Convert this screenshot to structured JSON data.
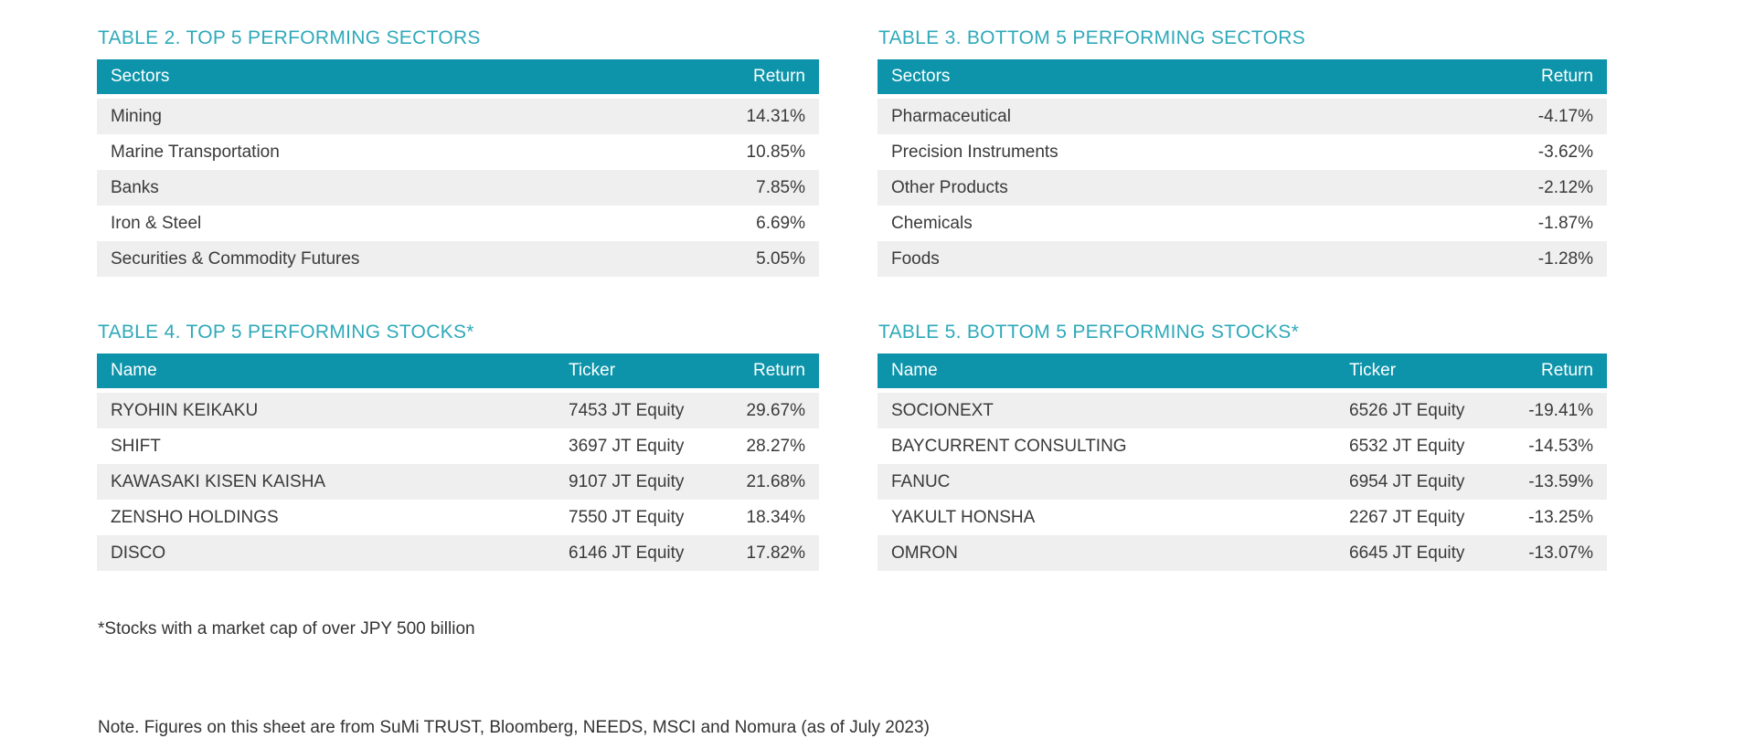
{
  "colors": {
    "table_header_bg": "#0d94aa",
    "table_title_text": "#2fa9b9",
    "row_stripe": "#efefef",
    "body_text": "#3a3a3a"
  },
  "tables": {
    "table2": {
      "title": "TABLE 2. TOP 5 PERFORMING SECTORS",
      "headers": {
        "col1": "Sectors",
        "col2": "Return"
      },
      "rows": [
        {
          "sector": "Mining",
          "return": "14.31%"
        },
        {
          "sector": "Marine Transportation",
          "return": "10.85%"
        },
        {
          "sector": "Banks",
          "return": "7.85%"
        },
        {
          "sector": "Iron & Steel",
          "return": "6.69%"
        },
        {
          "sector": "Securities & Commodity Futures",
          "return": "5.05%"
        }
      ]
    },
    "table3": {
      "title": "TABLE 3. BOTTOM 5 PERFORMING SECTORS",
      "headers": {
        "col1": "Sectors",
        "col2": "Return"
      },
      "rows": [
        {
          "sector": "Pharmaceutical",
          "return": "-4.17%"
        },
        {
          "sector": "Precision Instruments",
          "return": "-3.62%"
        },
        {
          "sector": "Other Products",
          "return": "-2.12%"
        },
        {
          "sector": "Chemicals",
          "return": "-1.87%"
        },
        {
          "sector": "Foods",
          "return": "-1.28%"
        }
      ]
    },
    "table4": {
      "title": "TABLE 4. TOP 5 PERFORMING STOCKS*",
      "headers": {
        "col1": "Name",
        "col2": "Ticker",
        "col3": "Return"
      },
      "rows": [
        {
          "name": "RYOHIN KEIKAKU",
          "ticker": "7453 JT Equity",
          "return": "29.67%"
        },
        {
          "name": "SHIFT",
          "ticker": "3697 JT Equity",
          "return": "28.27%"
        },
        {
          "name": "KAWASAKI KISEN KAISHA",
          "ticker": "9107 JT Equity",
          "return": "21.68%"
        },
        {
          "name": "ZENSHO HOLDINGS",
          "ticker": "7550 JT Equity",
          "return": "18.34%"
        },
        {
          "name": "DISCO",
          "ticker": "6146 JT Equity",
          "return": "17.82%"
        }
      ]
    },
    "table5": {
      "title": "TABLE 5. BOTTOM 5 PERFORMING STOCKS*",
      "headers": {
        "col1": "Name",
        "col2": "Ticker",
        "col3": "Return"
      },
      "rows": [
        {
          "name": "SOCIONEXT",
          "ticker": "6526 JT Equity",
          "return": "-19.41%"
        },
        {
          "name": "BAYCURRENT CONSULTING",
          "ticker": "6532 JT Equity",
          "return": "-14.53%"
        },
        {
          "name": "FANUC",
          "ticker": "6954 JT Equity",
          "return": "-13.59%"
        },
        {
          "name": "YAKULT HONSHA",
          "ticker": "2267 JT Equity",
          "return": "-13.25%"
        },
        {
          "name": "OMRON",
          "ticker": "6645 JT Equity",
          "return": "-13.07%"
        }
      ]
    }
  },
  "notes": {
    "market_cap_footnote": "*Stocks with a market cap of over JPY 500 billion",
    "source_note": "Note. Figures on this sheet are from SuMi TRUST, Bloomberg, NEEDS, MSCI and Nomura (as of July 2023)"
  }
}
